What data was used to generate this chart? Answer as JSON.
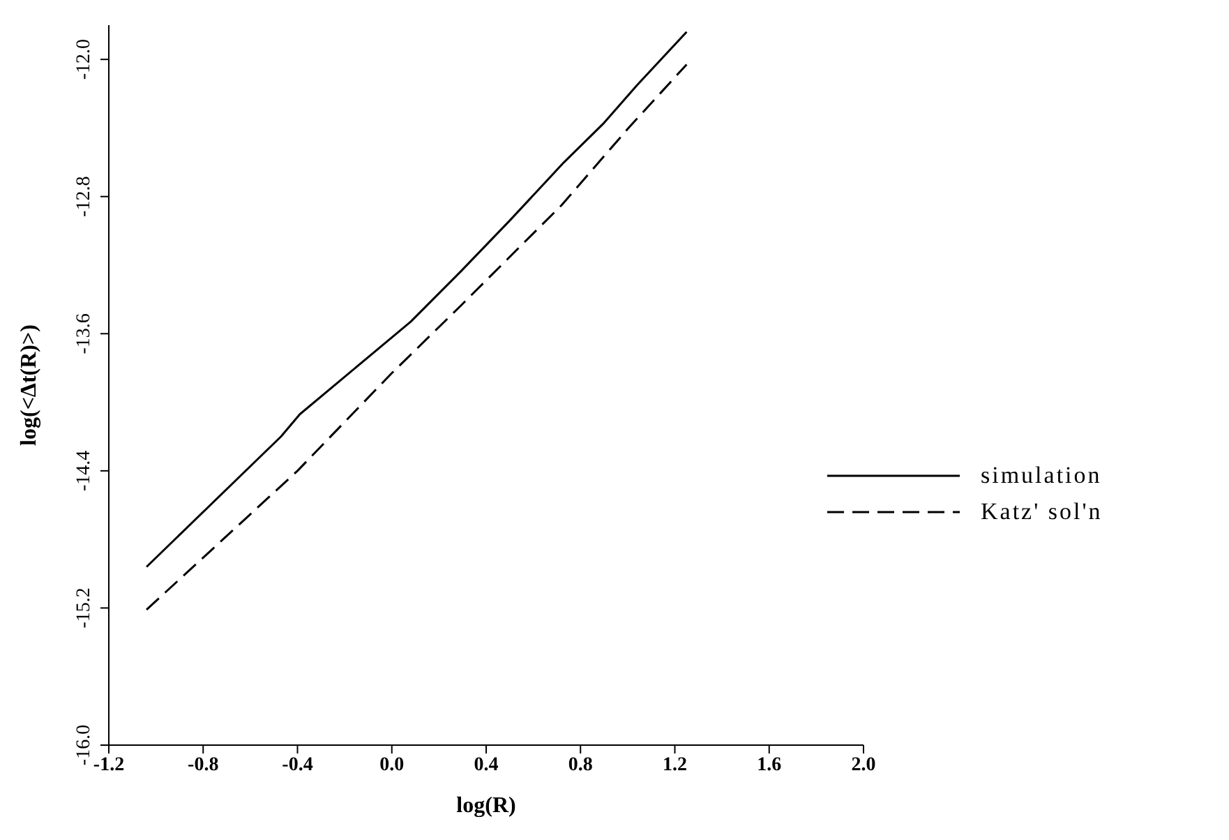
{
  "chart_data": {
    "type": "line",
    "xlabel": "log(R)",
    "ylabel": "log(<Δt(R)>)",
    "xlim": [
      -1.2,
      2.0
    ],
    "xticks": [
      -1.2,
      -0.8,
      -0.4,
      {
        "value": 0,
        "label": "0.0"
      },
      0.4,
      0.8,
      1.2,
      1.6,
      {
        "value": 2,
        "label": "2.0"
      }
    ],
    "ylim": [
      -16.0,
      -11.8
    ],
    "yticks": [
      {
        "value": -16,
        "label": "-16.0"
      },
      -15.2,
      -14.4,
      -13.6,
      -12.8,
      {
        "value": -12,
        "label": "-12.0"
      }
    ],
    "legend": "right",
    "marker": "none",
    "series": [
      {
        "name": "simulation",
        "color": "#000000",
        "line_style": "solid",
        "x": [
          -1.04,
          -0.47,
          -0.39,
          0.08,
          0.29,
          0.5,
          0.73,
          0.9,
          1.04,
          1.25
        ],
        "values": [
          -14.96,
          -14.2,
          -14.07,
          -13.53,
          -13.24,
          -12.94,
          -12.6,
          -12.37,
          -12.15,
          -11.84
        ]
      },
      {
        "name": "Katz' sol'n",
        "color": "#000000",
        "line_style": "dashed",
        "x": [
          -1.04,
          -0.4,
          0.0,
          0.29,
          0.72,
          1.01,
          1.25
        ],
        "values": [
          -15.21,
          -14.4,
          -13.83,
          -13.44,
          -12.85,
          -12.39,
          -12.03
        ]
      }
    ]
  }
}
